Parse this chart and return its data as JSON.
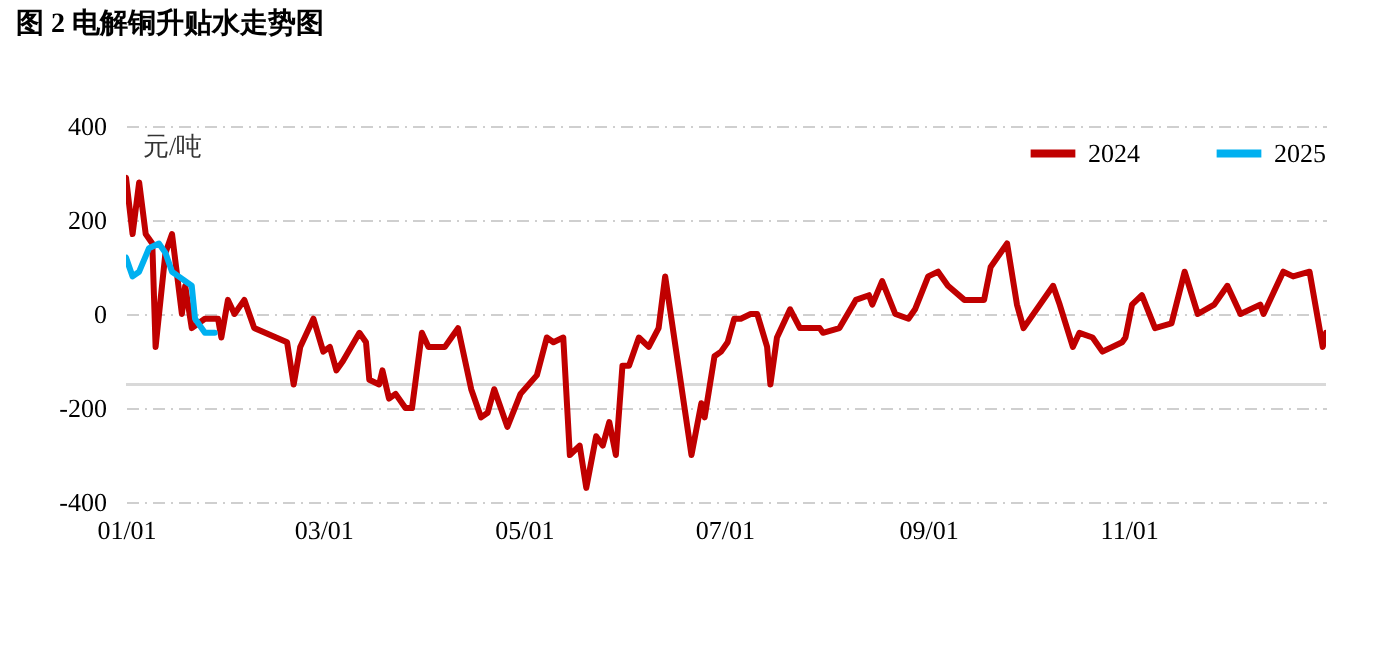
{
  "chart_data": {
    "type": "line",
    "title": "图 2 电解铜升贴水走势图",
    "ylabel": "元/吨",
    "xlim": [
      "--01-01",
      "--12-31"
    ],
    "xticks": [
      {
        "value": "--01-01",
        "label": "01/01"
      },
      {
        "value": "--03-01",
        "label": "03/01"
      },
      {
        "value": "--05-01",
        "label": "05/01"
      },
      {
        "value": "--07-01",
        "label": "07/01"
      },
      {
        "value": "--09-01",
        "label": "09/01"
      },
      {
        "value": "--11-01",
        "label": "11/01"
      }
    ],
    "ylim": [
      -400,
      400
    ],
    "yticks": [
      -400,
      -200,
      0,
      200,
      400
    ],
    "grid": "y",
    "legend": "top right",
    "marker": "none",
    "line_style": "solid",
    "ref_lines": [
      {
        "axis": "y",
        "value": -150,
        "color": "#d9d9d9"
      }
    ],
    "series": [
      {
        "name": "2024",
        "color": "#c00000",
        "x": [
          "--01-01",
          "--01-03",
          "--01-05",
          "--01-07",
          "--01-09",
          "--01-10",
          "--01-13",
          "--01-15",
          "--01-18",
          "--01-19",
          "--01-21",
          "--01-25",
          "--01-29",
          "--01-30",
          "--02-01",
          "--02-03",
          "--02-06",
          "--02-09",
          "--02-19",
          "--02-21",
          "--02-23",
          "--02-27",
          "--03-01",
          "--03-03",
          "--03-05",
          "--03-07",
          "--03-12",
          "--03-14",
          "--03-15",
          "--03-18",
          "--03-19",
          "--03-21",
          "--03-23",
          "--03-26",
          "--03-28",
          "--03-31",
          "--04-02",
          "--04-07",
          "--04-09",
          "--04-11",
          "--04-15",
          "--04-18",
          "--04-20",
          "--04-22",
          "--04-26",
          "--04-30",
          "--05-05",
          "--05-08",
          "--05-10",
          "--05-13",
          "--05-15",
          "--05-18",
          "--05-20",
          "--05-23",
          "--05-25",
          "--05-27",
          "--05-29",
          "--05-31",
          "--06-02",
          "--06-05",
          "--06-08",
          "--06-11",
          "--06-13",
          "--06-17",
          "--06-21",
          "--06-24",
          "--06-25",
          "--06-28",
          "--06-30",
          "--07-02",
          "--07-04",
          "--07-06",
          "--07-09",
          "--07-11",
          "--07-14",
          "--07-15",
          "--07-17",
          "--07-21",
          "--07-24",
          "--07-30",
          "--07-31",
          "--08-05",
          "--08-10",
          "--08-14",
          "--08-15",
          "--08-18",
          "--08-22",
          "--08-26",
          "--08-28",
          "--09-01",
          "--09-04",
          "--09-07",
          "--09-12",
          "--09-18",
          "--09-20",
          "--09-25",
          "--09-28",
          "--09-30",
          "--10-09",
          "--10-11",
          "--10-15",
          "--10-17",
          "--10-21",
          "--10-24",
          "--10-30",
          "--10-31",
          "--11-02",
          "--11-05",
          "--11-09",
          "--11-14",
          "--11-18",
          "--11-22",
          "--11-27",
          "--12-01",
          "--12-05",
          "--12-11",
          "--12-12",
          "--12-18",
          "--12-21",
          "--12-26",
          "--12-29",
          "--12-30",
          "--12-31"
        ],
        "values": [
          290,
          170,
          280,
          170,
          150,
          -70,
          130,
          170,
          0,
          60,
          -30,
          -10,
          -10,
          -50,
          30,
          0,
          30,
          -30,
          -60,
          -150,
          -70,
          -10,
          -80,
          -70,
          -120,
          -100,
          -40,
          -60,
          -140,
          -150,
          -120,
          -180,
          -170,
          -200,
          -200,
          -40,
          -70,
          -70,
          -50,
          -30,
          -160,
          -220,
          -210,
          -160,
          -240,
          -170,
          -130,
          -50,
          -60,
          -50,
          -300,
          -280,
          -370,
          -260,
          -280,
          -230,
          -300,
          -110,
          -110,
          -50,
          -70,
          -30,
          80,
          -110,
          -300,
          -190,
          -220,
          -90,
          -80,
          -60,
          -10,
          -10,
          0,
          0,
          -70,
          -150,
          -50,
          10,
          -30,
          -30,
          -40,
          -30,
          30,
          40,
          20,
          70,
          0,
          -10,
          10,
          80,
          90,
          60,
          30,
          30,
          100,
          150,
          20,
          -30,
          60,
          20,
          -70,
          -40,
          -50,
          -80,
          -60,
          -50,
          20,
          40,
          -30,
          -20,
          90,
          0,
          20,
          60,
          0,
          20,
          0,
          90,
          80,
          90,
          -30,
          -70,
          -40
        ]
      },
      {
        "name": "2025",
        "color": "#00b0f0",
        "x": [
          "--01-01",
          "--01-03",
          "--01-05",
          "--01-08",
          "--01-11",
          "--01-13",
          "--01-15",
          "--01-17",
          "--01-21",
          "--01-22",
          "--01-25",
          "--01-28"
        ],
        "values": [
          120,
          80,
          90,
          140,
          150,
          130,
          90,
          80,
          60,
          -10,
          -40,
          -40
        ]
      }
    ]
  }
}
